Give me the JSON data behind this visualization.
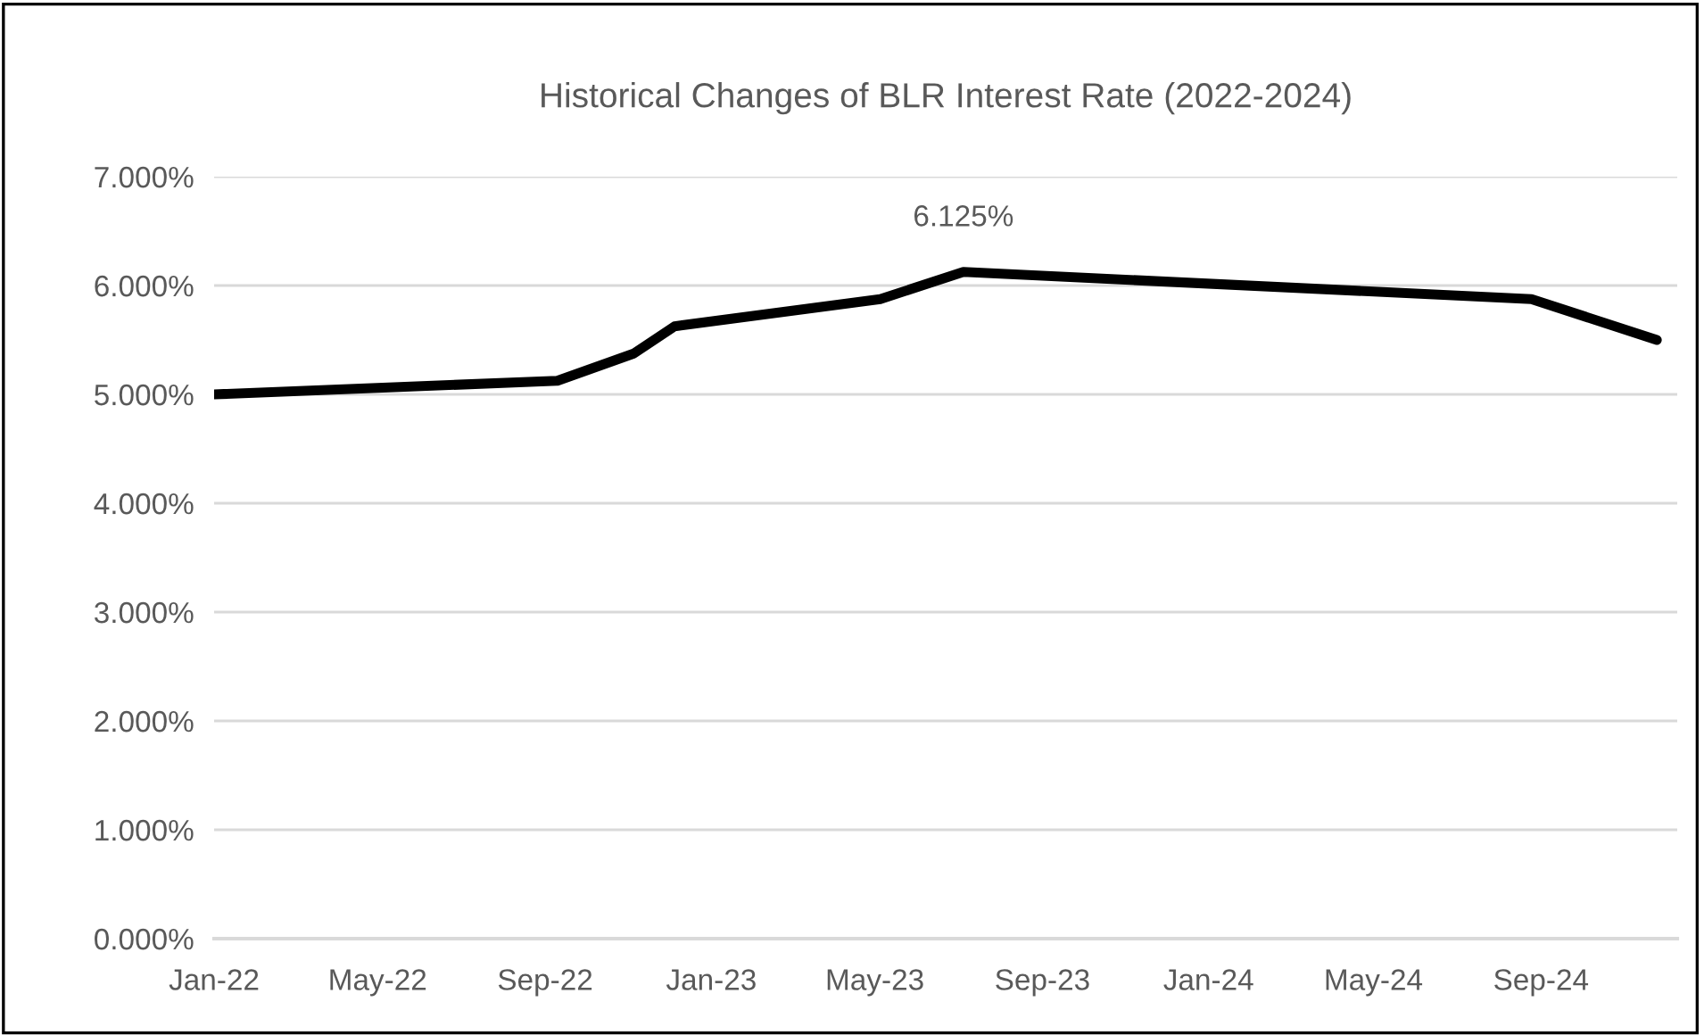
{
  "chart_data": {
    "type": "line",
    "title": "Historical Changes of BLR Interest Rate (2022-2024)",
    "x": [
      "2022-01-01",
      "2022-09-10",
      "2022-11-05",
      "2022-12-05",
      "2023-05-05",
      "2023-07-05",
      "2024-08-25",
      "2024-11-25"
    ],
    "series": [
      {
        "color": "#000000",
        "values": [
          5.0,
          5.125,
          5.375,
          5.625,
          5.875,
          6.125,
          5.875,
          5.5
        ],
        "value_labels": [
          null,
          null,
          null,
          null,
          null,
          "6.125%",
          null,
          null
        ]
      }
    ],
    "xlim": [
      "2022-01-01",
      "2024-12-10"
    ],
    "xticks": [
      {
        "value": "2022-01-01",
        "label": "Jan-22"
      },
      {
        "value": "2022-05-01",
        "label": "May-22"
      },
      {
        "value": "2022-09-01",
        "label": "Sep-22"
      },
      {
        "value": "2023-01-01",
        "label": "Jan-23"
      },
      {
        "value": "2023-05-01",
        "label": "May-23"
      },
      {
        "value": "2023-09-01",
        "label": "Sep-23"
      },
      {
        "value": "2024-01-01",
        "label": "Jan-24"
      },
      {
        "value": "2024-05-01",
        "label": "May-24"
      },
      {
        "value": "2024-09-01",
        "label": "Sep-24"
      }
    ],
    "ylim": [
      0,
      7
    ],
    "yticks": [
      {
        "value": 0,
        "label": "0.000%"
      },
      {
        "value": 1,
        "label": "1.000%"
      },
      {
        "value": 2,
        "label": "2.000%"
      },
      {
        "value": 3,
        "label": "3.000%"
      },
      {
        "value": 4,
        "label": "4.000%"
      },
      {
        "value": 5,
        "label": "5.000%"
      },
      {
        "value": 6,
        "label": "6.000%"
      },
      {
        "value": 7,
        "label": "7.000%"
      }
    ],
    "grid": "y",
    "legend": false,
    "marker": "none",
    "line_style": "solid"
  }
}
